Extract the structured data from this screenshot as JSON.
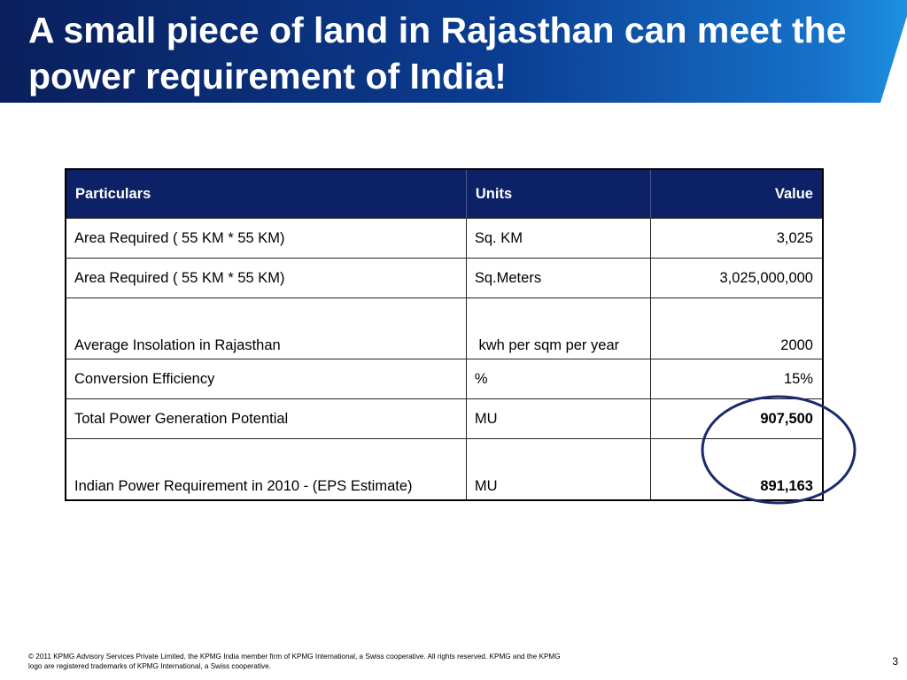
{
  "slide": {
    "title": "A small piece of land in Rajasthan can meet the power requirement of India!"
  },
  "table": {
    "headers": {
      "particulars": "Particulars",
      "units": "Units",
      "value": "Value"
    },
    "rows": [
      {
        "particulars": "Area Required  ( 55 KM * 55 KM)",
        "units": "Sq. KM",
        "value": "3,025"
      },
      {
        "particulars": "Area Required  ( 55 KM * 55 KM)",
        "units": "Sq.Meters",
        "value": "3,025,000,000"
      },
      {
        "particulars": "Average Insolation in Rajasthan",
        "units": " kwh per sqm per year",
        "value": "2000"
      },
      {
        "particulars": "Conversion Efficiency",
        "units": "%",
        "value": "15%"
      },
      {
        "particulars": "Total Power Generation Potential",
        "units": "MU",
        "value": "907,500"
      },
      {
        "particulars": "Indian Power Requirement in 2010 - (EPS Estimate)",
        "units": "MU",
        "value": "891,163"
      }
    ]
  },
  "footer": {
    "copyright_line1": "© 2011 KPMG Advisory Services Private Limited, the KPMG India member firm of KPMG International, a Swiss cooperative. All rights reserved. KPMG and the KPMG",
    "copyright_line2": "logo are registered trademarks of KPMG International, a Swiss cooperative.",
    "page_number": "3"
  },
  "colors": {
    "banner_dark": "#0a1f5c",
    "banner_mid": "#0b3d91",
    "banner_light": "#1e90e0",
    "table_header": "#0c2166",
    "highlight_circle": "#1a2a6e"
  }
}
